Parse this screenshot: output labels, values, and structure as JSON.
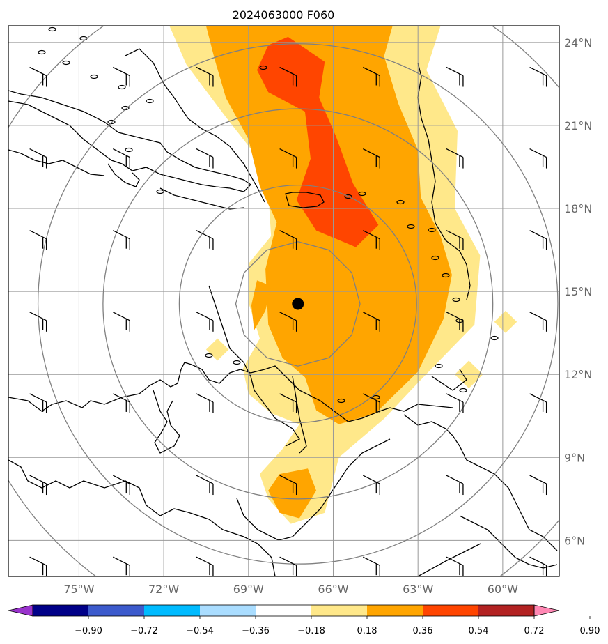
{
  "title": "2024063000 F060",
  "chart_data": {
    "type": "heatmap",
    "title": "2024063000 F060",
    "xlabel": "",
    "ylabel": "",
    "xlim": [
      -77.5,
      -58.0
    ],
    "ylim": [
      4.7,
      24.6
    ],
    "grid": true,
    "lon_ticks": [
      -75,
      -72,
      -69,
      -66,
      -63,
      -60
    ],
    "lon_tick_labels": [
      "75°W",
      "72°W",
      "69°W",
      "66°W",
      "63°W",
      "60°W"
    ],
    "lat_ticks": [
      6,
      9,
      12,
      15,
      18,
      21,
      24
    ],
    "lat_tick_labels": [
      "6°N",
      "9°N",
      "12°N",
      "15°N",
      "18°N",
      "21°N",
      "24°N"
    ],
    "center_marker": {
      "lon": -67.25,
      "lat": 14.55
    },
    "range_ring_radii_deg": [
      2.2,
      4.2,
      6.9,
      9.2,
      12.0
    ],
    "colorbar": {
      "boundaries": [
        -0.9,
        -0.72,
        -0.54,
        -0.36,
        -0.18,
        0.18,
        0.36,
        0.54,
        0.72,
        0.9
      ],
      "tick_labels": [
        "−0.90",
        "−0.72",
        "−0.54",
        "−0.36",
        "−0.18",
        "0.18",
        "0.36",
        "0.54",
        "0.72",
        "0.90"
      ],
      "colors": [
        "#9933cc",
        "#000088",
        "#3c5acc",
        "#00bbff",
        "#aaddff",
        "#ffffff",
        "#ffe88a",
        "#ffa500",
        "#ff4500",
        "#b22222",
        "#ff88b4"
      ],
      "extend": "both"
    },
    "contour_levels": [
      {
        "range": [
          0.18,
          0.36
        ],
        "color": "#ffe88a",
        "regions": [
          {
            "name": "main-plume",
            "polygon": [
              [
                -71.8,
                24.6
              ],
              [
                -62.2,
                24.6
              ],
              [
                -62.7,
                23.0
              ],
              [
                -61.6,
                20.8
              ],
              [
                -61.7,
                18.0
              ],
              [
                -60.8,
                16.3
              ],
              [
                -61.0,
                13.8
              ],
              [
                -63.0,
                11.7
              ],
              [
                -64.2,
                10.4
              ],
              [
                -65.8,
                9.0
              ],
              [
                -66.3,
                7.0
              ],
              [
                -67.5,
                6.6
              ],
              [
                -68.3,
                7.5
              ],
              [
                -68.6,
                8.4
              ],
              [
                -67.8,
                9.3
              ],
              [
                -67.2,
                10.2
              ],
              [
                -68.2,
                10.6
              ],
              [
                -69.0,
                11.3
              ],
              [
                -69.2,
                12.2
              ],
              [
                -68.6,
                13.3
              ],
              [
                -69.0,
                14.6
              ],
              [
                -69.0,
                16.0
              ],
              [
                -68.2,
                17.0
              ],
              [
                -68.3,
                18.6
              ],
              [
                -68.8,
                20.0
              ],
              [
                -69.8,
                21.3
              ],
              [
                -71.2,
                23.2
              ]
            ]
          },
          {
            "name": "west-spot",
            "polygon": [
              [
                -70.1,
                13.3
              ],
              [
                -69.7,
                12.9
              ],
              [
                -70.1,
                12.5
              ],
              [
                -70.5,
                12.9
              ]
            ]
          },
          {
            "name": "east-spot-1",
            "polygon": [
              [
                -59.9,
                14.3
              ],
              [
                -59.5,
                13.9
              ],
              [
                -59.9,
                13.5
              ],
              [
                -60.3,
                13.9
              ]
            ]
          },
          {
            "name": "east-spot-2",
            "polygon": [
              [
                -61.2,
                12.5
              ],
              [
                -60.7,
                12.0
              ],
              [
                -61.2,
                11.5
              ],
              [
                -61.7,
                12.0
              ]
            ]
          }
        ]
      },
      {
        "range": [
          0.36,
          0.54
        ],
        "color": "#ffa500",
        "regions": [
          {
            "name": "main-core",
            "polygon": [
              [
                -70.5,
                24.6
              ],
              [
                -63.9,
                24.6
              ],
              [
                -64.2,
                23.5
              ],
              [
                -63.7,
                21.8
              ],
              [
                -63.0,
                20.1
              ],
              [
                -62.9,
                18.4
              ],
              [
                -62.2,
                17.0
              ],
              [
                -61.8,
                15.6
              ],
              [
                -62.1,
                14.0
              ],
              [
                -63.0,
                12.1
              ],
              [
                -64.5,
                10.6
              ],
              [
                -65.8,
                10.2
              ],
              [
                -66.6,
                10.7
              ],
              [
                -67.0,
                11.9
              ],
              [
                -67.8,
                12.6
              ],
              [
                -68.3,
                13.8
              ],
              [
                -68.4,
                15.8
              ],
              [
                -68.0,
                17.5
              ],
              [
                -68.6,
                18.8
              ],
              [
                -69.0,
                20.5
              ],
              [
                -69.8,
                22.0
              ],
              [
                -70.2,
                23.4
              ]
            ]
          },
          {
            "name": "south-blob",
            "polygon": [
              [
                -67.9,
                8.4
              ],
              [
                -66.9,
                8.6
              ],
              [
                -66.6,
                7.8
              ],
              [
                -67.2,
                6.8
              ],
              [
                -67.9,
                7.0
              ],
              [
                -68.3,
                7.8
              ]
            ]
          },
          {
            "name": "west-blob",
            "polygon": [
              [
                -68.8,
                13.6
              ],
              [
                -68.4,
                14.3
              ],
              [
                -68.2,
                15.2
              ],
              [
                -68.7,
                15.4
              ],
              [
                -68.9,
                14.5
              ]
            ]
          }
        ]
      },
      {
        "range": [
          0.54,
          0.72
        ],
        "color": "#ff4500",
        "regions": [
          {
            "name": "north-core",
            "polygon": [
              [
                -68.3,
                23.9
              ],
              [
                -67.6,
                24.2
              ],
              [
                -66.3,
                23.3
              ],
              [
                -66.5,
                22.0
              ],
              [
                -65.9,
                20.6
              ],
              [
                -65.3,
                18.9
              ],
              [
                -64.4,
                17.4
              ],
              [
                -65.2,
                16.6
              ],
              [
                -66.6,
                17.2
              ],
              [
                -67.3,
                18.3
              ],
              [
                -66.8,
                19.8
              ],
              [
                -67.0,
                21.5
              ],
              [
                -68.3,
                22.2
              ],
              [
                -68.7,
                23.0
              ]
            ]
          }
        ]
      }
    ],
    "wind_barbs_grid": {
      "lon_start": -76.5,
      "lon_step": 2.95,
      "lat_start": 5.0,
      "lat_step": 2.95,
      "count_x": 7,
      "count_y": 7
    }
  }
}
